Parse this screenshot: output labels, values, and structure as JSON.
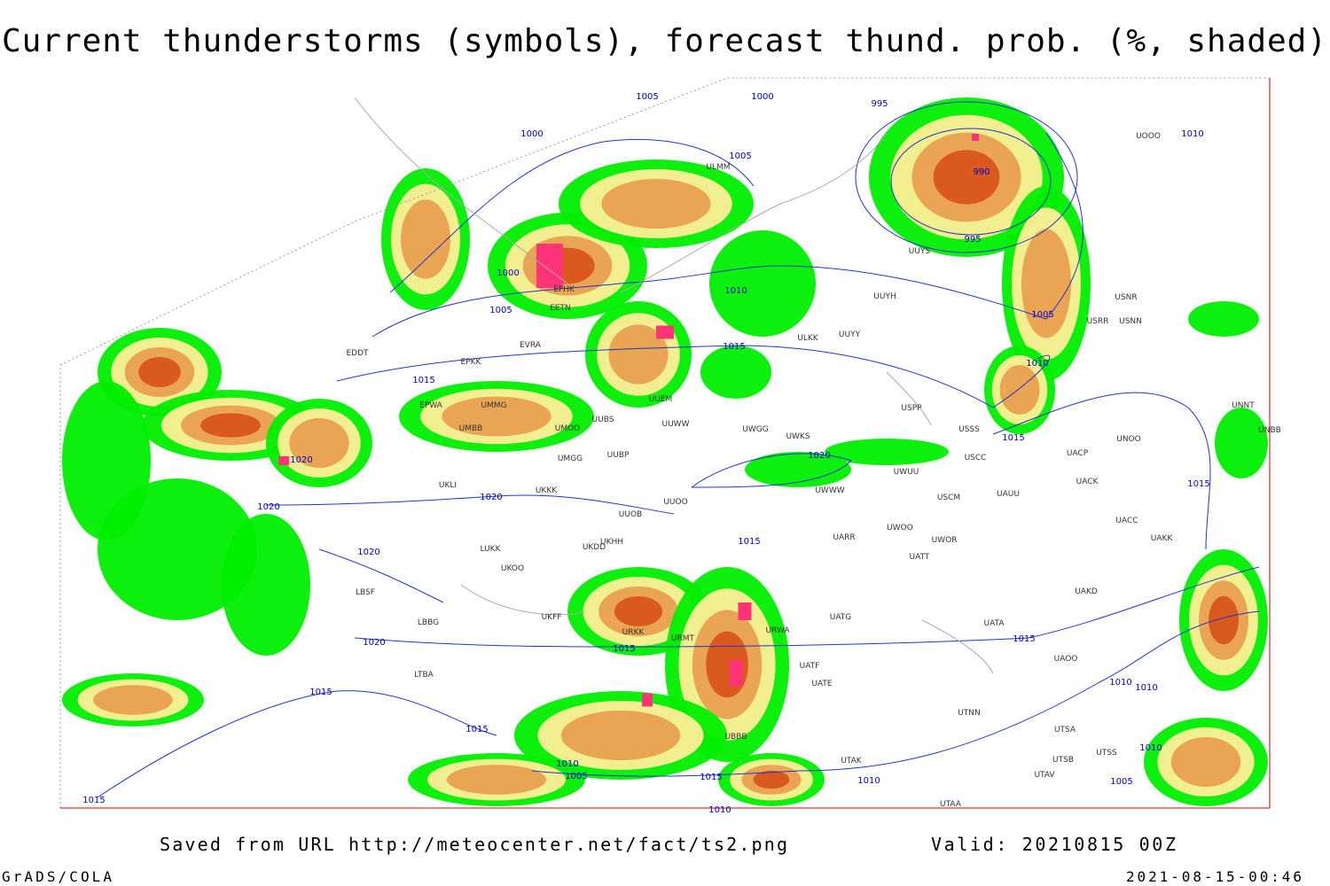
{
  "header": {
    "title": "Current thunderstorms (symbols), forecast thund. prob. (%, shaded)"
  },
  "footer": {
    "saved": "Saved from URL http://meteocenter.net/fact/ts2.png",
    "valid": "Valid: 20210815 00Z",
    "left": "GrADS/COLA",
    "right": "2021-08-15-00:46"
  },
  "isobar_labels": [
    "1005",
    "1000",
    "1000",
    "1005",
    "995",
    "1010",
    "990",
    "995",
    "1000",
    "1005",
    "1010",
    "1015",
    "1005",
    "1010",
    "1015",
    "1015",
    "1020",
    "1020",
    "1015",
    "1020",
    "1020",
    "1020",
    "1015",
    "1020",
    "1015",
    "1015",
    "1015",
    "1010",
    "1010",
    "1015",
    "1010",
    "1010",
    "1005",
    "1015",
    "1010",
    "1005",
    "1015",
    "1010"
  ],
  "station_labels": [
    "EFHK",
    "EETN",
    "EVRA",
    "EDDT",
    "EPKK",
    "EPWA",
    "UMMG",
    "UMBB",
    "UMOO",
    "UUBS",
    "UUEM",
    "UUWW",
    "UWGG",
    "UWKS",
    "UUYY",
    "UUYH",
    "ULKK",
    "USPP",
    "USSS",
    "USCC",
    "USCM",
    "UWUU",
    "UWWW",
    "UUOO",
    "UUOB",
    "UKKK",
    "UMGG",
    "UUBP",
    "UKLI",
    "LUKK",
    "UKOO",
    "UKHH",
    "UKDD",
    "UKFF",
    "URKK",
    "URWA",
    "UATG",
    "UATA",
    "UATT",
    "UWOO",
    "UWOR",
    "UARR",
    "UAUU",
    "UACK",
    "UACC",
    "UAKK",
    "UAKD",
    "UAOO",
    "UNOO",
    "UNNT",
    "UNBB",
    "UACP",
    "UTNN",
    "UTAK",
    "UTSA",
    "UTSB",
    "UTSS",
    "UTAV",
    "UTAA",
    "LBSF",
    "LBBG",
    "LTBA",
    "URMT",
    "UBBB",
    "UATE",
    "UATF",
    "UOOO",
    "USRR",
    "USNN",
    "USNR",
    "UUYS",
    "ULMM"
  ]
}
